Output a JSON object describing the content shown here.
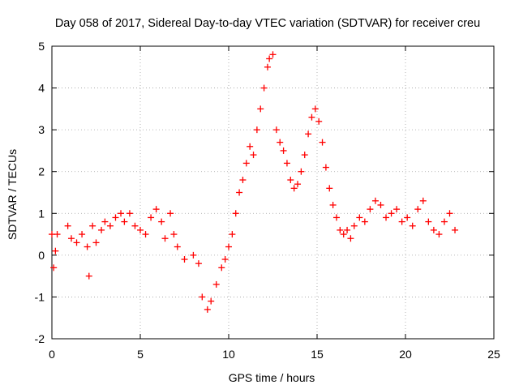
{
  "chart_data": {
    "type": "scatter",
    "title": "Day 058 of 2017, Sidereal Day-to-day VTEC variation (SDTVAR) for receiver creu",
    "xlabel": "GPS time / hours",
    "ylabel": "SDTVAR / TECUs",
    "xlim": [
      0,
      25
    ],
    "ylim": [
      -2,
      5
    ],
    "xticks": [
      "0",
      "5",
      "10",
      "15",
      "20",
      "25"
    ],
    "yticks": [
      "-2",
      "-1",
      "0",
      "1",
      "2",
      "3",
      "4",
      "5"
    ],
    "grid": true,
    "marker": "+",
    "series": [
      {
        "name": "SDTVAR",
        "color": "#ff0000",
        "x": [
          0.0,
          0.1,
          0.2,
          0.3,
          0.9,
          1.1,
          1.4,
          1.7,
          2.0,
          2.1,
          2.3,
          2.5,
          2.8,
          3.0,
          3.3,
          3.6,
          3.9,
          4.1,
          4.4,
          4.7,
          5.0,
          5.3,
          5.6,
          5.9,
          6.2,
          6.4,
          6.7,
          6.9,
          7.1,
          7.5,
          8.0,
          8.3,
          8.5,
          8.8,
          9.0,
          9.3,
          9.6,
          9.8,
          10.0,
          10.2,
          10.4,
          10.6,
          10.8,
          11.0,
          11.2,
          11.4,
          11.6,
          11.8,
          12.0,
          12.2,
          12.3,
          12.5,
          12.7,
          12.9,
          13.1,
          13.3,
          13.5,
          13.7,
          13.9,
          14.1,
          14.3,
          14.5,
          14.7,
          14.9,
          15.1,
          15.3,
          15.5,
          15.7,
          15.9,
          16.1,
          16.3,
          16.5,
          16.7,
          16.9,
          17.1,
          17.4,
          17.7,
          18.0,
          18.3,
          18.6,
          18.9,
          19.2,
          19.5,
          19.8,
          20.1,
          20.4,
          20.7,
          21.0,
          21.3,
          21.6,
          21.9,
          22.2,
          22.5,
          22.8
        ],
        "y": [
          0.5,
          -0.3,
          0.1,
          0.5,
          0.7,
          0.4,
          0.3,
          0.5,
          0.2,
          -0.5,
          0.7,
          0.3,
          0.6,
          0.8,
          0.7,
          0.9,
          1.0,
          0.8,
          1.0,
          0.7,
          0.6,
          0.5,
          0.9,
          1.1,
          0.8,
          0.4,
          1.0,
          0.5,
          0.2,
          -0.1,
          0.0,
          -0.2,
          -1.0,
          -1.3,
          -1.1,
          -0.7,
          -0.3,
          -0.1,
          0.2,
          0.5,
          1.0,
          1.5,
          1.8,
          2.2,
          2.6,
          2.4,
          3.0,
          3.5,
          4.0,
          4.5,
          4.7,
          4.8,
          3.0,
          2.7,
          2.5,
          2.2,
          1.8,
          1.6,
          1.7,
          2.0,
          2.4,
          2.9,
          3.3,
          3.5,
          3.2,
          2.7,
          2.1,
          1.6,
          1.2,
          0.9,
          0.6,
          0.5,
          0.6,
          0.4,
          0.7,
          0.9,
          0.8,
          1.1,
          1.3,
          1.2,
          0.9,
          1.0,
          1.1,
          0.8,
          0.9,
          0.7,
          1.1,
          1.3,
          0.8,
          0.6,
          0.5,
          0.8,
          1.0,
          0.6
        ]
      }
    ]
  }
}
